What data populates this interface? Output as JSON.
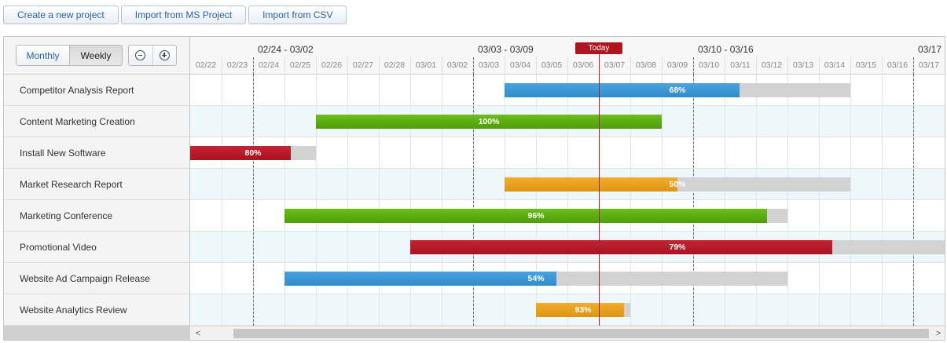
{
  "toolbar": {
    "create_label": "Create a new project",
    "import_ms_label": "Import from MS Project",
    "import_csv_label": "Import from CSV"
  },
  "view": {
    "monthly_label": "Monthly",
    "weekly_label": "Weekly",
    "selected": "Weekly",
    "zoom_out_icon": "zoom-out-icon",
    "zoom_in_icon": "zoom-in-icon"
  },
  "timeline": {
    "weeks": [
      "02/24 - 03/02",
      "03/03 - 03/09",
      "03/10 - 03/16",
      "03/17"
    ],
    "days": [
      "02/22",
      "02/23",
      "02/24",
      "02/25",
      "02/26",
      "02/27",
      "02/28",
      "03/01",
      "03/02",
      "03/03",
      "03/04",
      "03/05",
      "03/06",
      "03/07",
      "03/08",
      "03/09",
      "03/10",
      "03/11",
      "03/12",
      "03/13",
      "03/14",
      "03/15",
      "03/16",
      "03/17"
    ],
    "today_label": "Today",
    "today_day_index": 13
  },
  "colors": {
    "blue": "#2f8ccc",
    "green": "#4f9d08",
    "red": "#a8121f",
    "orange": "#dd9612",
    "today": "#b0151f",
    "remaining": "#d2d2d2"
  },
  "tasks": [
    {
      "name": "Competitor Analysis Report",
      "start_day": 10,
      "duration_days": 11,
      "progress": 68,
      "progress_label": "68%",
      "color": "blue"
    },
    {
      "name": "Content Marketing Creation",
      "start_day": 4,
      "duration_days": 11,
      "progress": 100,
      "progress_label": "100%",
      "color": "green"
    },
    {
      "name": "Install New Software",
      "start_day": 0,
      "duration_days": 4,
      "progress": 80,
      "progress_label": "80%",
      "color": "red"
    },
    {
      "name": "Market Research Report",
      "start_day": 10,
      "duration_days": 11,
      "progress": 50,
      "progress_label": "50%",
      "color": "orange"
    },
    {
      "name": "Marketing Conference",
      "start_day": 3,
      "duration_days": 16,
      "progress": 96,
      "progress_label": "96%",
      "color": "green"
    },
    {
      "name": "Promotional Video",
      "start_day": 7,
      "duration_days": 17,
      "progress": 79,
      "progress_label": "79%",
      "color": "red"
    },
    {
      "name": "Website Ad Campaign Release",
      "start_day": 3,
      "duration_days": 16,
      "progress": 54,
      "progress_label": "54%",
      "color": "blue"
    },
    {
      "name": "Website Analytics Review",
      "start_day": 11,
      "duration_days": 3,
      "progress": 93,
      "progress_label": "93%",
      "color": "orange"
    }
  ],
  "scrollbar": {
    "left_arrow": "<",
    "right_arrow": ">"
  }
}
